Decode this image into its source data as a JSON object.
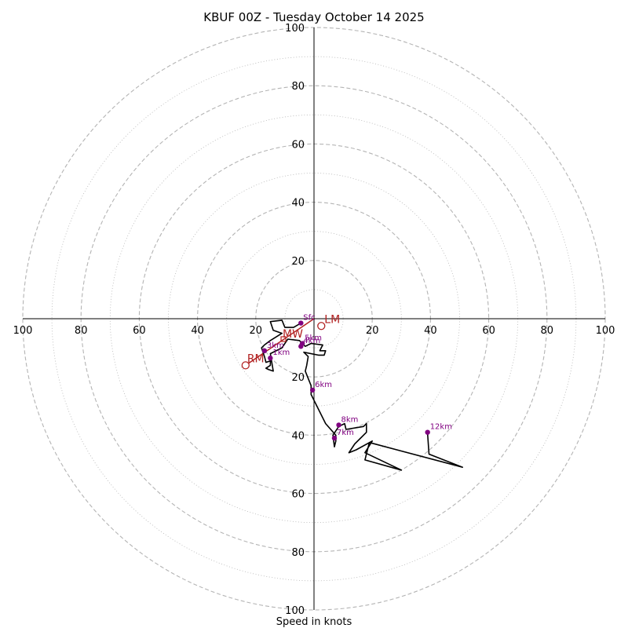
{
  "chart_data": {
    "type": "hodograph",
    "title": "KBUF 00Z - Tuesday October 14 2025",
    "xlabel": "Speed in knots",
    "speed_range": [
      -100,
      100
    ],
    "ring_major": [
      20,
      40,
      60,
      80,
      100
    ],
    "ring_minor": [
      10,
      30,
      50,
      70,
      90
    ],
    "tick_labels": [
      "100",
      "80",
      "60",
      "40",
      "20",
      "20",
      "40",
      "60",
      "80",
      "100"
    ],
    "tick_values": [
      -100,
      -80,
      -60,
      -40,
      -20,
      20,
      40,
      60,
      80,
      100
    ],
    "colors": {
      "trace": "#000000",
      "points": "#800080",
      "motion": "#b22222",
      "ring": "#b4b4b4"
    },
    "hodograph_trace": [
      [
        -4.5,
        1.5
      ],
      [
        -7,
        3
      ],
      [
        -10,
        3
      ],
      [
        -11,
        0.5
      ],
      [
        -15,
        1
      ],
      [
        -14,
        4
      ],
      [
        -11,
        5
      ],
      [
        -15,
        7.5
      ],
      [
        -17,
        9
      ],
      [
        -18,
        10
      ],
      [
        -17,
        13
      ],
      [
        -16.5,
        15
      ],
      [
        -15,
        14.5
      ],
      [
        -15,
        16
      ],
      [
        -16.5,
        17
      ],
      [
        -15.5,
        17.5
      ],
      [
        -14,
        18
      ],
      [
        -15,
        12
      ],
      [
        -11,
        10
      ],
      [
        -9,
        7
      ],
      [
        -5,
        7.5
      ],
      [
        -3,
        9.5
      ],
      [
        -1,
        8.5
      ],
      [
        3,
        9
      ],
      [
        2,
        11
      ],
      [
        4,
        11
      ],
      [
        3.5,
        12.5
      ],
      [
        1.5,
        12.5
      ],
      [
        -3.5,
        11.5
      ],
      [
        -2,
        13
      ],
      [
        -2.5,
        16
      ],
      [
        -3,
        18
      ],
      [
        -1,
        23
      ],
      [
        -1,
        26
      ],
      [
        4,
        36
      ],
      [
        7.5,
        40
      ],
      [
        7.5,
        42
      ],
      [
        7,
        44
      ],
      [
        6.5,
        40
      ],
      [
        8.5,
        37
      ],
      [
        10.5,
        36
      ],
      [
        11,
        38
      ],
      [
        17,
        37
      ],
      [
        18,
        36
      ],
      [
        18,
        39
      ],
      [
        14,
        43
      ],
      [
        12,
        46
      ],
      [
        14.5,
        45
      ],
      [
        20,
        42
      ],
      [
        17.5,
        46
      ],
      [
        30,
        52
      ],
      [
        17.5,
        48.5
      ],
      [
        19,
        42.5
      ],
      [
        51,
        51
      ],
      [
        39.5,
        46.5
      ],
      [
        39,
        39.5
      ]
    ],
    "height_points": [
      {
        "label": "Sfc",
        "u": -4.5,
        "v": 1.5
      },
      {
        "label": "1km",
        "u": -15,
        "v": 13.5
      },
      {
        "label": "3km",
        "u": -17,
        "v": 11
      },
      {
        "label": "4km",
        "u": -4.5,
        "v": 9.5
      },
      {
        "label": "5km",
        "u": -4,
        "v": 8.5
      },
      {
        "label": "6km",
        "u": -0.5,
        "v": 24.5
      },
      {
        "label": "7km",
        "u": 7,
        "v": 41
      },
      {
        "label": "8km",
        "u": 8.5,
        "v": 36.5
      },
      {
        "label": "12km",
        "u": 39,
        "v": 39
      }
    ],
    "storm_motion": [
      {
        "label": "RM",
        "u": -23.5,
        "v": 16
      },
      {
        "label": "LM",
        "u": 2.5,
        "v": 2.5
      },
      {
        "label": "MW",
        "u": -10.5,
        "v": 7
      }
    ]
  }
}
